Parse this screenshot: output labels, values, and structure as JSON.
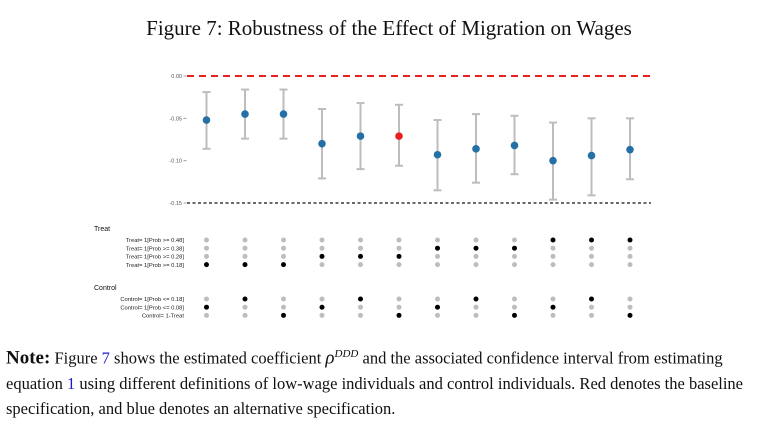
{
  "title": "Figure 7: Robustness of the Effect of Migration on Wages",
  "note": {
    "label": "Note:",
    "part1": "Figure",
    "fig_ref": "7",
    "part2": "shows the estimated coefficient",
    "symbol": "ρ",
    "superscript": "DDD",
    "part3": "and the associated confidence interval from estimating equation",
    "eq_ref": "1",
    "part4": "using different definitions of low-wage individuals and control individuals. Red denotes the baseline specification, and blue denotes an alternative specification."
  },
  "chart_data": {
    "type": "scatter",
    "subtype": "specification-curve",
    "ylim": [
      -0.15,
      0.0
    ],
    "yticks": [
      "0.00",
      "-0.05",
      "-0.10",
      "-0.15"
    ],
    "ytick_values": [
      0.0,
      -0.05,
      -0.1,
      -0.15
    ],
    "reference_lines": [
      {
        "y": 0.0,
        "style": "dashed",
        "color": "#e8201e"
      },
      {
        "y": -0.15,
        "style": "dashed",
        "color": "#111111"
      }
    ],
    "series": [
      {
        "estimate": [
          -0.052,
          -0.045,
          -0.045,
          -0.08,
          -0.071,
          -0.071,
          -0.093,
          -0.086,
          -0.082,
          -0.1,
          -0.094,
          -0.087
        ],
        "ci_low": [
          -0.086,
          -0.074,
          -0.074,
          -0.121,
          -0.11,
          -0.106,
          -0.135,
          -0.126,
          -0.116,
          -0.146,
          -0.141,
          -0.122
        ],
        "ci_high": [
          -0.019,
          -0.016,
          -0.016,
          -0.039,
          -0.032,
          -0.034,
          -0.052,
          -0.045,
          -0.047,
          -0.055,
          -0.05,
          -0.05
        ],
        "baseline_index": 5
      }
    ],
    "colors": {
      "alternative": "#2470a6",
      "baseline": "#e8201e",
      "ci": "#bdbdbd",
      "active": "#000000",
      "inactive": "#bdbdbd"
    },
    "indicator_groups": [
      {
        "label": "Treat",
        "rows": [
          {
            "label": "Treat= 1[Prob >= 0.48]",
            "active": [
              0,
              0,
              0,
              0,
              0,
              0,
              0,
              0,
              0,
              1,
              1,
              1
            ]
          },
          {
            "label": "Treat= 1[Prob >= 0.38]",
            "active": [
              0,
              0,
              0,
              0,
              0,
              0,
              1,
              1,
              1,
              0,
              0,
              0
            ]
          },
          {
            "label": "Treat= 1[Prob >= 0.28]",
            "active": [
              0,
              0,
              0,
              1,
              1,
              1,
              0,
              0,
              0,
              0,
              0,
              0
            ]
          },
          {
            "label": "Treat= 1[Prob >= 0.18]",
            "active": [
              1,
              1,
              1,
              0,
              0,
              0,
              0,
              0,
              0,
              0,
              0,
              0
            ]
          }
        ]
      },
      {
        "label": "Control",
        "rows": [
          {
            "label": "Control= 1[Prob <= 0.18]",
            "active": [
              0,
              1,
              0,
              0,
              1,
              0,
              0,
              1,
              0,
              0,
              1,
              0
            ]
          },
          {
            "label": "Control= 1[Prob <= 0.08]",
            "active": [
              1,
              0,
              0,
              1,
              0,
              0,
              1,
              0,
              0,
              1,
              0,
              0
            ]
          },
          {
            "label": "Control= 1-Treat",
            "active": [
              0,
              0,
              1,
              0,
              0,
              1,
              0,
              0,
              1,
              0,
              0,
              1
            ]
          }
        ]
      }
    ]
  }
}
